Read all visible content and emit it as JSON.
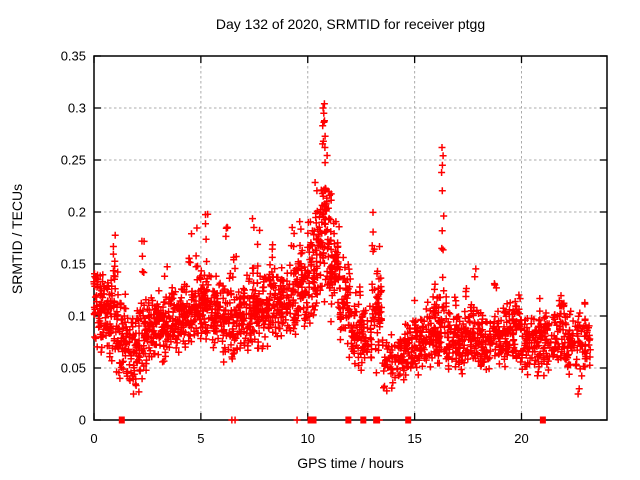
{
  "chart_data": {
    "type": "scatter",
    "title": "Day 132 of 2020, SRMTID for receiver ptgg",
    "xlabel": "GPS time / hours",
    "ylabel": "SRMTID / TECUs",
    "xlim": [
      0,
      24
    ],
    "ylim": [
      0,
      0.35
    ],
    "xticks": [
      0,
      5,
      10,
      15,
      20
    ],
    "xtick_labels": [
      "0",
      "5",
      "10",
      "15",
      "20"
    ],
    "yticks": [
      0,
      0.05,
      0.1,
      0.15,
      0.2,
      0.25,
      0.3,
      0.35
    ],
    "ytick_labels": [
      "0",
      "0.05",
      "0.1",
      "0.15",
      "0.2",
      "0.25",
      "0.3",
      "0.35"
    ],
    "grid": true,
    "grid_color": "#ababab",
    "marker": {
      "shape": "plus",
      "color": "#ff0000",
      "size": 7
    },
    "series_name": "SRMTID",
    "seed": 2020132,
    "bins_format": "[x_start, x_end, point_count, y_low, y_high] dense scatter cloud read from plot",
    "cloud_bins": [
      [
        0.0,
        0.5,
        60,
        0.055,
        0.155
      ],
      [
        0.5,
        1.0,
        60,
        0.05,
        0.15
      ],
      [
        1.0,
        1.5,
        55,
        0.035,
        0.125
      ],
      [
        1.5,
        2.0,
        50,
        0.028,
        0.105
      ],
      [
        2.0,
        2.5,
        55,
        0.035,
        0.12
      ],
      [
        2.5,
        3.0,
        55,
        0.05,
        0.125
      ],
      [
        3.0,
        3.5,
        55,
        0.05,
        0.13
      ],
      [
        3.5,
        4.0,
        55,
        0.06,
        0.13
      ],
      [
        4.0,
        4.5,
        60,
        0.065,
        0.14
      ],
      [
        4.5,
        5.0,
        60,
        0.07,
        0.145
      ],
      [
        5.0,
        5.5,
        60,
        0.075,
        0.15
      ],
      [
        5.5,
        6.0,
        55,
        0.065,
        0.14
      ],
      [
        6.0,
        6.5,
        55,
        0.05,
        0.15
      ],
      [
        6.5,
        7.0,
        55,
        0.05,
        0.135
      ],
      [
        7.0,
        7.5,
        55,
        0.06,
        0.145
      ],
      [
        7.5,
        8.0,
        60,
        0.065,
        0.15
      ],
      [
        8.0,
        8.5,
        60,
        0.07,
        0.15
      ],
      [
        8.5,
        9.0,
        55,
        0.07,
        0.15
      ],
      [
        9.0,
        9.5,
        55,
        0.07,
        0.16
      ],
      [
        9.5,
        10.0,
        60,
        0.08,
        0.17
      ],
      [
        10.0,
        10.5,
        65,
        0.085,
        0.2
      ],
      [
        10.5,
        11.0,
        70,
        0.1,
        0.245
      ],
      [
        11.0,
        11.5,
        65,
        0.09,
        0.2
      ],
      [
        11.5,
        12.0,
        55,
        0.06,
        0.16
      ],
      [
        12.0,
        12.5,
        50,
        0.045,
        0.125
      ],
      [
        12.5,
        13.0,
        45,
        0.04,
        0.12
      ],
      [
        13.0,
        13.5,
        50,
        0.045,
        0.155
      ],
      [
        13.5,
        14.0,
        35,
        0.03,
        0.085
      ],
      [
        14.0,
        14.5,
        35,
        0.032,
        0.09
      ],
      [
        14.5,
        15.0,
        45,
        0.038,
        0.1
      ],
      [
        15.0,
        15.5,
        50,
        0.042,
        0.11
      ],
      [
        15.5,
        16.0,
        50,
        0.045,
        0.12
      ],
      [
        16.0,
        16.5,
        55,
        0.05,
        0.14
      ],
      [
        16.5,
        17.0,
        50,
        0.045,
        0.12
      ],
      [
        17.0,
        17.5,
        50,
        0.04,
        0.11
      ],
      [
        17.5,
        18.0,
        50,
        0.045,
        0.12
      ],
      [
        18.0,
        18.5,
        50,
        0.04,
        0.105
      ],
      [
        18.5,
        19.0,
        50,
        0.048,
        0.11
      ],
      [
        19.0,
        19.5,
        50,
        0.05,
        0.115
      ],
      [
        19.5,
        20.0,
        50,
        0.05,
        0.12
      ],
      [
        20.0,
        20.5,
        45,
        0.04,
        0.105
      ],
      [
        20.5,
        21.0,
        45,
        0.04,
        0.105
      ],
      [
        21.0,
        21.5,
        45,
        0.042,
        0.11
      ],
      [
        21.5,
        22.0,
        50,
        0.05,
        0.12
      ],
      [
        22.0,
        22.5,
        45,
        0.04,
        0.11
      ],
      [
        22.5,
        23.25,
        55,
        0.042,
        0.108
      ]
    ],
    "streaks_format": "[x_center, y_low, y_high, point_count] vertical clusters above the cloud",
    "streaks": [
      [
        0.05,
        0.12,
        0.165,
        4
      ],
      [
        0.15,
        0.13,
        0.175,
        3
      ],
      [
        0.95,
        0.13,
        0.19,
        6
      ],
      [
        1.05,
        0.11,
        0.155,
        3
      ],
      [
        2.3,
        0.12,
        0.185,
        5
      ],
      [
        3.35,
        0.11,
        0.15,
        3
      ],
      [
        4.5,
        0.13,
        0.18,
        5
      ],
      [
        4.85,
        0.13,
        0.19,
        4
      ],
      [
        5.25,
        0.14,
        0.2,
        5
      ],
      [
        6.2,
        0.165,
        0.195,
        4
      ],
      [
        6.6,
        0.12,
        0.17,
        4
      ],
      [
        7.45,
        0.14,
        0.2,
        5
      ],
      [
        7.7,
        0.13,
        0.185,
        4
      ],
      [
        8.3,
        0.14,
        0.2,
        5
      ],
      [
        9.3,
        0.15,
        0.2,
        4
      ],
      [
        9.7,
        0.15,
        0.215,
        5
      ],
      [
        10.4,
        0.17,
        0.23,
        5
      ],
      [
        10.75,
        0.24,
        0.29,
        5
      ],
      [
        10.85,
        0.19,
        0.26,
        6
      ],
      [
        11.05,
        0.16,
        0.22,
        4
      ],
      [
        12.4,
        0.12,
        0.165,
        3
      ],
      [
        13.05,
        0.155,
        0.2,
        5
      ],
      [
        13.35,
        0.1,
        0.17,
        4
      ],
      [
        15.0,
        0.09,
        0.115,
        3
      ],
      [
        15.9,
        0.095,
        0.135,
        3
      ],
      [
        16.3,
        0.16,
        0.235,
        5
      ],
      [
        17.35,
        0.1,
        0.15,
        3
      ],
      [
        17.8,
        0.105,
        0.155,
        3
      ],
      [
        18.8,
        0.095,
        0.135,
        3
      ],
      [
        19.9,
        0.1,
        0.135,
        3
      ],
      [
        20.85,
        0.1,
        0.13,
        2
      ],
      [
        21.8,
        0.1,
        0.125,
        3
      ],
      [
        23.0,
        0.085,
        0.115,
        3
      ]
    ],
    "outliers_format": "[x, y] individually visible extreme points",
    "outliers": [
      [
        10.72,
        0.3
      ],
      [
        10.78,
        0.304
      ],
      [
        10.75,
        0.295
      ],
      [
        10.7,
        0.283
      ],
      [
        10.73,
        0.268
      ],
      [
        10.8,
        0.262
      ],
      [
        16.28,
        0.262
      ],
      [
        16.33,
        0.254
      ],
      [
        16.3,
        0.245
      ],
      [
        16.26,
        0.238
      ],
      [
        1.85,
        0.025
      ],
      [
        2.1,
        0.027
      ],
      [
        13.7,
        0.028
      ],
      [
        22.65,
        0.025
      ],
      [
        22.7,
        0.03
      ]
    ],
    "zeros_format": "[x, overlap_weight] points lying on the y=0 axis (appear as red squares)",
    "zero_points": [
      [
        1.3,
        2
      ],
      [
        6.45,
        1
      ],
      [
        6.6,
        1
      ],
      [
        9.5,
        1
      ],
      [
        10.2,
        3
      ],
      [
        11.9,
        2
      ],
      [
        12.6,
        2
      ],
      [
        13.2,
        2
      ],
      [
        13.35,
        1
      ],
      [
        14.7,
        2
      ],
      [
        21.0,
        2
      ]
    ],
    "x_data_end": 23.3,
    "legend": "none"
  }
}
